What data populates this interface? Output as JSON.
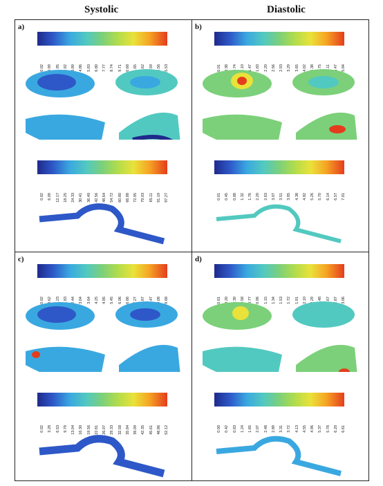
{
  "headers": {
    "systolic": "Systolic",
    "diastolic": "Diastolic"
  },
  "panels": [
    {
      "label": "a)",
      "scale1": [
        "0.02",
        "0.99",
        "1.95",
        "2.92",
        "3.89",
        "4.86",
        "5.83",
        "6.80",
        "7.77",
        "8.74",
        "9.71",
        "10.68",
        "11.65",
        "12.62",
        "13.59",
        "14.56",
        "15.53"
      ],
      "scale2": [
        "0.02",
        "6.09",
        "12.17",
        "18.25",
        "24.33",
        "30.41",
        "36.49",
        "42.56",
        "48.64",
        "54.72",
        "60.80",
        "66.88",
        "72.95",
        "79.03",
        "85.11",
        "91.19",
        "97.27"
      ]
    },
    {
      "label": "b)",
      "scale1": [
        "0.01",
        "0.38",
        "0.74",
        "1.10",
        "1.47",
        "1.83",
        "2.20",
        "2.56",
        "2.93",
        "3.29",
        "3.65",
        "4.02",
        "4.38",
        "4.75",
        "5.11",
        "5.47",
        "5.84"
      ],
      "scale2": [
        "0.01",
        "0.45",
        "0.88",
        "1.32",
        "1.76",
        "2.20",
        "2.63",
        "3.07",
        "3.51",
        "3.95",
        "4.38",
        "4.82",
        "5.26",
        "5.70",
        "6.14",
        "6.57",
        "7.01"
      ]
    },
    {
      "label": "c)",
      "scale1": [
        "0.02",
        "0.62",
        "1.23",
        "1.83",
        "2.44",
        "3.04",
        "3.64",
        "4.25",
        "4.85",
        "5.45",
        "6.06",
        "6.66",
        "7.27",
        "7.87",
        "8.47",
        "9.08",
        "9.68"
      ],
      "scale2": [
        "0.02",
        "3.28",
        "6.53",
        "9.79",
        "13.04",
        "16.30",
        "19.56",
        "22.81",
        "26.07",
        "29.33",
        "32.58",
        "35.84",
        "39.09",
        "42.35",
        "45.61",
        "48.86",
        "52.12"
      ]
    },
    {
      "label": "d)",
      "scale1": [
        "0.01",
        "0.20",
        "0.39",
        "0.58",
        "0.77",
        "0.96",
        "1.15",
        "1.34",
        "1.53",
        "1.72",
        "1.91",
        "2.10",
        "2.29",
        "2.48",
        "2.67",
        "2.87",
        "3.06"
      ],
      "scale2": [
        "0.00",
        "0.42",
        "0.83",
        "1.24",
        "1.65",
        "2.07",
        "2.48",
        "2.89",
        "3.31",
        "3.72",
        "4.13",
        "4.55",
        "4.96",
        "5.37",
        "5.78",
        "6.20",
        "6.61"
      ]
    }
  ]
}
